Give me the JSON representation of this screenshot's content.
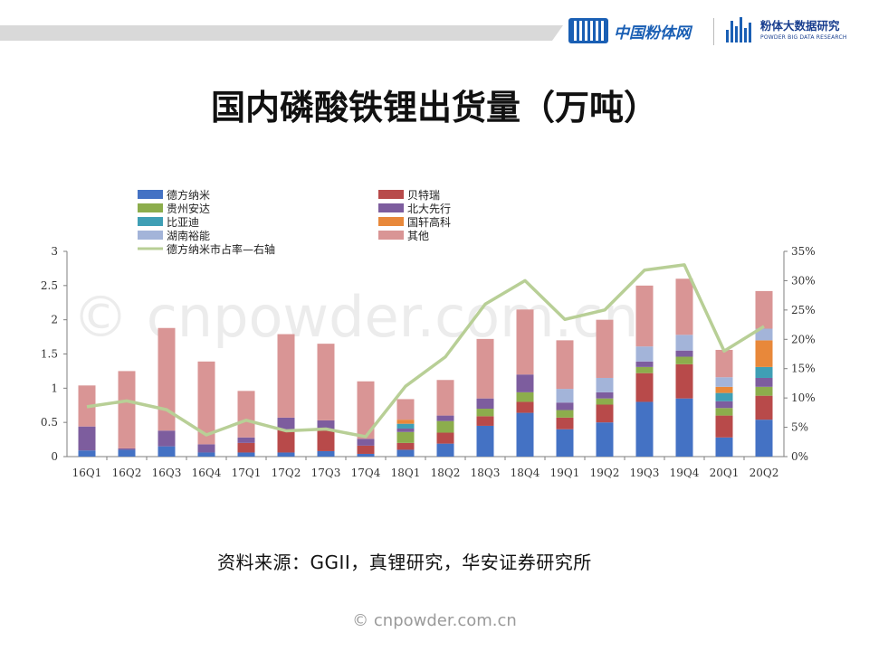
{
  "header": {
    "logo_primary": "中国粉体网",
    "logo_secondary_cn": "粉体大数据研究",
    "logo_secondary_en": "POWDER BIG DATA RESEARCH"
  },
  "slide_title": "国内磷酸铁锂出货量（万吨）",
  "source_note": "资料来源：GGII，真锂研究，华安证券研究所",
  "watermark": "© cnpowder.com.cn",
  "footer_watermark": "© cnpowder.com.cn",
  "colors": {
    "德方纳米": "#4472c4",
    "贵州安达": "#8cad4c",
    "比亚迪": "#3f9fb5",
    "湖南裕能": "#a3b4d9",
    "贝特瑞": "#b84a4a",
    "北大先行": "#7d5d9e",
    "国轩高科": "#e8883a",
    "其他": "#d99595",
    "line": "#b8cf96"
  },
  "chart_data": {
    "type": "bar",
    "stacked": true,
    "title": "",
    "categories": [
      "16Q1",
      "16Q2",
      "16Q3",
      "16Q4",
      "17Q1",
      "17Q2",
      "17Q3",
      "17Q4",
      "18Q1",
      "18Q2",
      "18Q3",
      "18Q4",
      "19Q1",
      "19Q2",
      "19Q3",
      "19Q4",
      "20Q1",
      "20Q2"
    ],
    "ylim": [
      0,
      3
    ],
    "yticks": [
      "0",
      "0.5",
      "1",
      "1.5",
      "2",
      "2.5",
      "3"
    ],
    "y2lim": [
      0,
      0.35
    ],
    "y2ticks": [
      "0%",
      "5%",
      "10%",
      "15%",
      "20%",
      "25%",
      "30%",
      "35%"
    ],
    "legend_position": "top-left",
    "grid": false,
    "series": [
      {
        "name": "德方纳米",
        "values": [
          0.09,
          0.1,
          0.15,
          0.06,
          0.06,
          0.06,
          0.08,
          0.04,
          0.1,
          0.19,
          0.45,
          0.64,
          0.4,
          0.5,
          0.8,
          0.85,
          0.28,
          0.54
        ]
      },
      {
        "name": "贝特瑞",
        "values": [
          0.0,
          0.0,
          0.0,
          0.0,
          0.14,
          0.33,
          0.31,
          0.12,
          0.1,
          0.16,
          0.14,
          0.16,
          0.17,
          0.26,
          0.42,
          0.5,
          0.32,
          0.35
        ]
      },
      {
        "name": "贵州安达",
        "values": [
          0.0,
          0.0,
          0.0,
          0.0,
          0.0,
          0.0,
          0.0,
          0.0,
          0.16,
          0.17,
          0.11,
          0.14,
          0.11,
          0.09,
          0.09,
          0.11,
          0.11,
          0.13
        ]
      },
      {
        "name": "北大先行",
        "values": [
          0.35,
          0.02,
          0.23,
          0.12,
          0.08,
          0.18,
          0.14,
          0.1,
          0.05,
          0.08,
          0.15,
          0.26,
          0.11,
          0.09,
          0.08,
          0.09,
          0.1,
          0.13
        ]
      },
      {
        "name": "比亚迪",
        "values": [
          0.0,
          0.0,
          0.0,
          0.0,
          0.0,
          0.0,
          0.0,
          0.0,
          0.07,
          0.0,
          0.0,
          0.0,
          0.0,
          0.0,
          0.0,
          0.0,
          0.12,
          0.16
        ]
      },
      {
        "name": "国轩高科",
        "values": [
          0.0,
          0.0,
          0.0,
          0.0,
          0.0,
          0.0,
          0.0,
          0.0,
          0.06,
          0.0,
          0.0,
          0.0,
          0.0,
          0.0,
          0.0,
          0.0,
          0.09,
          0.39
        ]
      },
      {
        "name": "湖南裕能",
        "values": [
          0.0,
          0.0,
          0.0,
          0.0,
          0.0,
          0.0,
          0.0,
          0.0,
          0.0,
          0.0,
          0.0,
          0.0,
          0.2,
          0.21,
          0.22,
          0.23,
          0.14,
          0.17
        ]
      },
      {
        "name": "其他",
        "values": [
          0.6,
          1.13,
          1.5,
          1.21,
          0.68,
          1.22,
          1.12,
          0.84,
          0.3,
          0.52,
          0.87,
          0.95,
          0.71,
          0.85,
          0.89,
          0.82,
          0.4,
          0.55
        ]
      }
    ],
    "line_series": {
      "name": "德方纳米市占率—右轴",
      "axis": "right",
      "values": [
        0.085,
        0.095,
        0.08,
        0.037,
        0.062,
        0.044,
        0.047,
        0.034,
        0.12,
        0.17,
        0.26,
        0.3,
        0.234,
        0.25,
        0.318,
        0.327,
        0.18,
        0.222
      ]
    },
    "legend": {
      "column_left": [
        "德方纳米",
        "贵州安达",
        "比亚迪",
        "湖南裕能",
        "德方纳米市占率—右轴"
      ],
      "column_right": [
        "贝特瑞",
        "北大先行",
        "国轩高科",
        "其他"
      ]
    }
  }
}
